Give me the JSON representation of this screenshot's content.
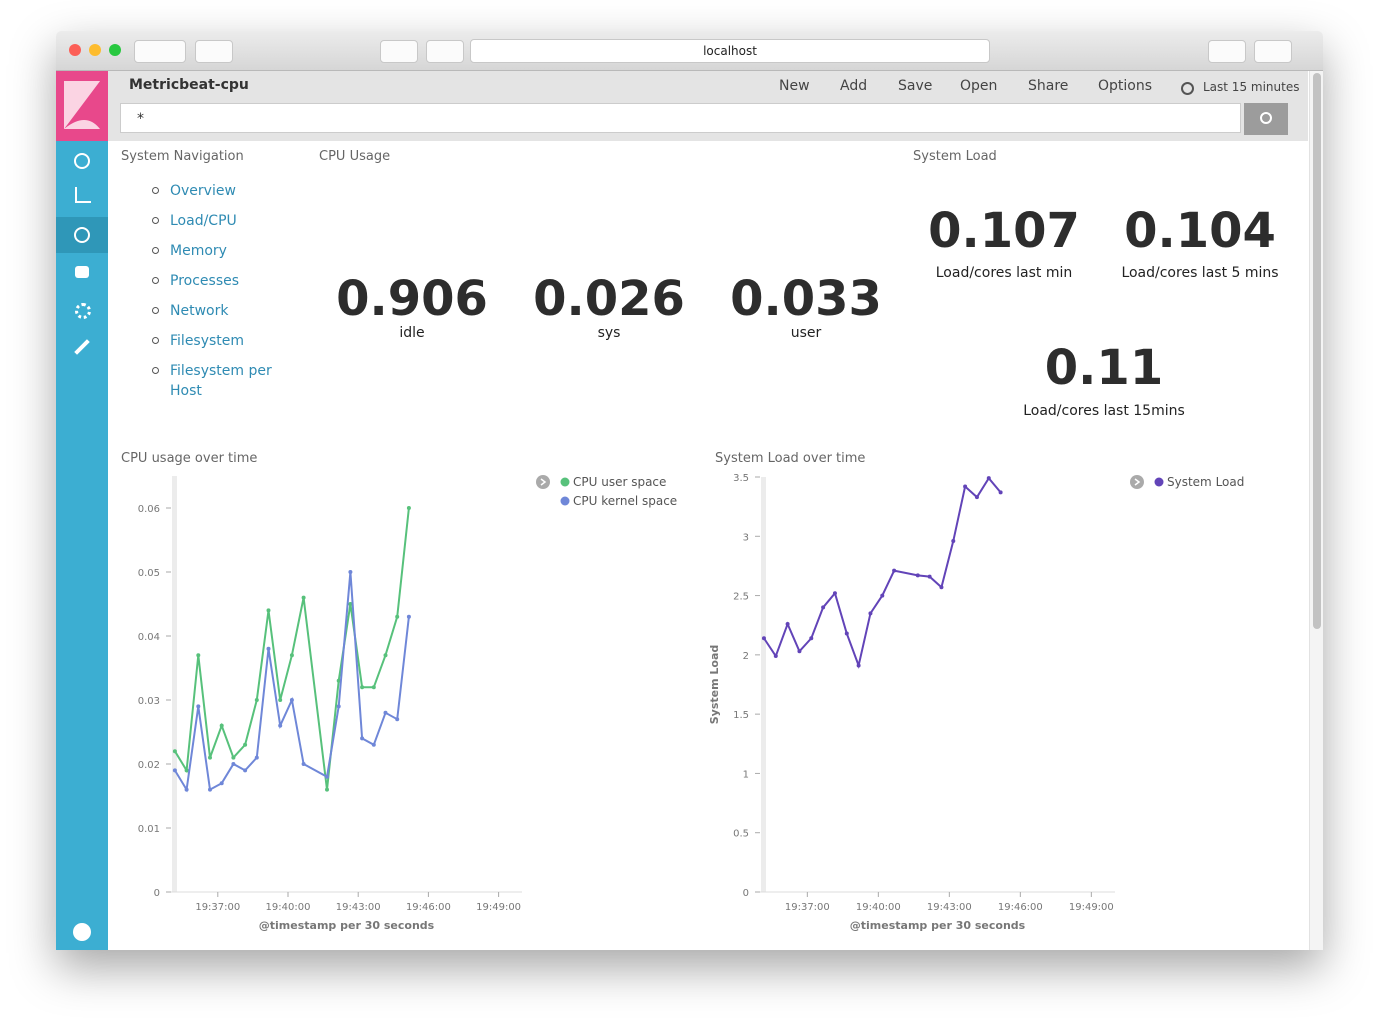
{
  "browser": {
    "url": "localhost"
  },
  "app": {
    "title": "Metricbeat-cpu",
    "menu": [
      "New",
      "Add",
      "Save",
      "Open",
      "Share",
      "Options"
    ],
    "time_range": "Last 15 minutes",
    "query": "*"
  },
  "navigation": {
    "title": "System Navigation",
    "links": [
      "Overview",
      "Load/CPU",
      "Memory",
      "Processes",
      "Network",
      "Filesystem",
      "Filesystem per Host"
    ]
  },
  "cpu_usage": {
    "title": "CPU Usage",
    "metrics": [
      {
        "value": 0.906,
        "label": "idle"
      },
      {
        "value": 0.026,
        "label": "sys"
      },
      {
        "value": 0.033,
        "label": "user"
      }
    ]
  },
  "system_load": {
    "title": "System Load",
    "metrics": [
      {
        "value": 0.107,
        "label": "Load/cores last min"
      },
      {
        "value": 0.104,
        "label": "Load/cores last 5 mins"
      },
      {
        "value": 0.11,
        "label": "Load/cores last 15mins"
      }
    ]
  },
  "chart_data": [
    {
      "type": "line",
      "title": "CPU usage over time",
      "x_label": "@timestamp per 30 seconds",
      "x": [
        "19:35:10",
        "19:35:40",
        "19:36:10",
        "19:36:40",
        "19:37:10",
        "19:37:40",
        "19:38:10",
        "19:38:40",
        "19:39:10",
        "19:39:40",
        "19:40:10",
        "19:40:40",
        "19:41:40",
        "19:42:10",
        "19:42:40",
        "19:43:10",
        "19:43:40",
        "19:44:10",
        "19:44:40",
        "19:45:10"
      ],
      "series": [
        {
          "name": "CPU user space",
          "color": "#57c17b",
          "values": [
            0.022,
            0.019,
            0.037,
            0.021,
            0.026,
            0.021,
            0.023,
            0.03,
            0.044,
            0.03,
            0.037,
            0.046,
            0.016,
            0.033,
            0.045,
            0.032,
            0.032,
            0.037,
            0.043,
            0.06
          ]
        },
        {
          "name": "CPU kernel space",
          "color": "#6f87d8",
          "values": [
            0.019,
            0.016,
            0.029,
            0.016,
            0.017,
            0.02,
            0.019,
            0.021,
            0.038,
            0.026,
            0.03,
            0.02,
            0.018,
            0.029,
            0.05,
            0.024,
            0.023,
            0.028,
            0.027,
            0.043
          ]
        }
      ],
      "xlim": [
        "19:35:00",
        "19:50:00"
      ],
      "xticks": [
        "19:37:00",
        "19:40:00",
        "19:43:00",
        "19:46:00",
        "19:49:00"
      ],
      "ylim": [
        0,
        0.065
      ],
      "yticks": [
        0,
        0.01,
        0.02,
        0.03,
        0.04,
        0.05,
        0.06
      ],
      "grid": false
    },
    {
      "type": "line",
      "title": "System Load over time",
      "x_label": "@timestamp per 30 seconds",
      "y_label": "System Load",
      "x": [
        "19:35:10",
        "19:35:40",
        "19:36:10",
        "19:36:40",
        "19:37:10",
        "19:37:40",
        "19:38:10",
        "19:38:40",
        "19:39:10",
        "19:39:40",
        "19:40:10",
        "19:40:40",
        "19:41:40",
        "19:42:10",
        "19:42:40",
        "19:43:10",
        "19:43:40",
        "19:44:10",
        "19:44:40",
        "19:45:10"
      ],
      "series": [
        {
          "name": "System Load",
          "color": "#6244b8",
          "values": [
            2.14,
            1.99,
            2.26,
            2.03,
            2.14,
            2.4,
            2.52,
            2.18,
            1.91,
            2.35,
            2.5,
            2.71,
            2.67,
            2.66,
            2.57,
            2.96,
            3.42,
            3.33,
            3.49,
            3.37
          ]
        }
      ],
      "xlim": [
        "19:35:00",
        "19:50:00"
      ],
      "xticks": [
        "19:37:00",
        "19:40:00",
        "19:43:00",
        "19:46:00",
        "19:49:00"
      ],
      "ylim": [
        0,
        3.5
      ],
      "yticks": [
        0,
        0.5,
        1,
        1.5,
        2,
        2.5,
        3,
        3.5
      ],
      "grid": false
    }
  ]
}
